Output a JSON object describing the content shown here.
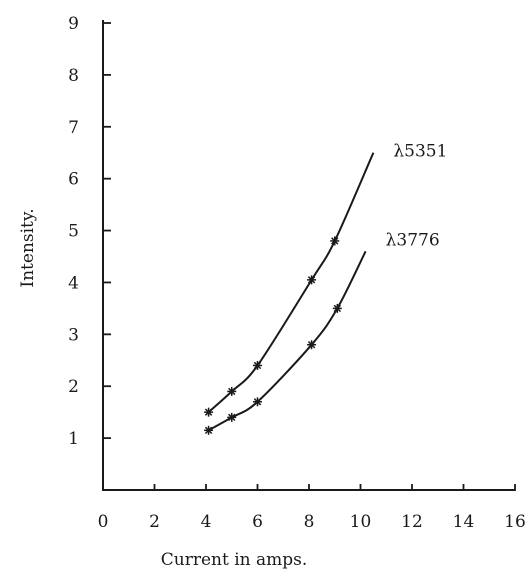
{
  "chart_data": {
    "type": "line",
    "title": "",
    "xlabel": "Current in amps.",
    "ylabel": "Intensity.",
    "xlim": [
      0,
      16
    ],
    "ylim": [
      0,
      9
    ],
    "x_ticks": [
      "0",
      "2",
      "4",
      "6",
      "8",
      "10",
      "12",
      "14",
      "16"
    ],
    "y_ticks": [
      "1",
      "2",
      "3",
      "4",
      "5",
      "6",
      "7",
      "8",
      "9"
    ],
    "grid": false,
    "series": [
      {
        "name": "λ5351",
        "points": [
          [
            4.1,
            1.5
          ],
          [
            5.0,
            1.9
          ],
          [
            6.0,
            2.4
          ],
          [
            8.1,
            4.05
          ],
          [
            9.0,
            4.8
          ]
        ],
        "curve_x_end": 10.5,
        "curve_y_end": 6.5
      },
      {
        "name": "λ3776",
        "points": [
          [
            4.1,
            1.15
          ],
          [
            5.0,
            1.4
          ],
          [
            6.0,
            1.7
          ],
          [
            8.1,
            2.8
          ],
          [
            9.1,
            3.5
          ]
        ],
        "curve_x_end": 10.2,
        "curve_y_end": 4.6
      }
    ]
  }
}
